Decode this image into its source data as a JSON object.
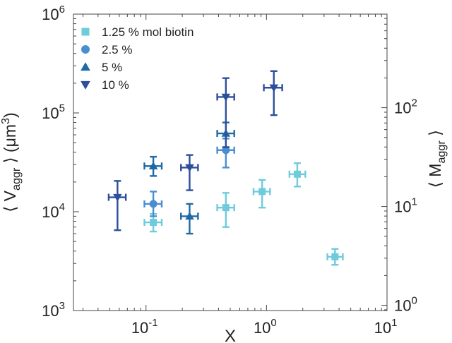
{
  "chart_data": {
    "type": "scatter",
    "xlabel": "X",
    "ylabel": {
      "prefix": "⟨ V",
      "sub": "aggr",
      "mid": " ⟩ (μm",
      "sup": "3",
      "suffix": ")"
    },
    "y2label": {
      "prefix": "⟨ M",
      "sub": "aggr",
      "suffix": " ⟩"
    },
    "x_scale": "log",
    "y_scale": "log",
    "xlim": [
      0.025,
      10
    ],
    "ylim": [
      1000,
      1000000
    ],
    "y2_scale": "log",
    "y2_ticks": [
      1,
      10,
      100
    ],
    "y2_conversion": "M = V / 1130",
    "x_ticks": [
      0.1,
      1,
      10
    ],
    "y_ticks": [
      1000,
      10000,
      100000,
      1000000
    ],
    "grid": false,
    "legend_position": "top-left",
    "series": [
      {
        "name": "1.25 % mol biotin",
        "marker": "square",
        "color": "#6dcbdc",
        "points": [
          {
            "x": 0.115,
            "y": 7800,
            "xerr": [
              0.097,
              0.135
            ],
            "yerr": [
              6300,
              9500
            ]
          },
          {
            "x": 0.46,
            "y": 11000,
            "xerr": [
              0.39,
              0.54
            ],
            "yerr": [
              7000,
              15500
            ]
          },
          {
            "x": 0.92,
            "y": 16000,
            "xerr": [
              0.78,
              1.07
            ],
            "yerr": [
              11000,
              21000
            ]
          },
          {
            "x": 1.8,
            "y": 24000,
            "xerr": [
              1.55,
              2.1
            ],
            "yerr": [
              18000,
              31000
            ]
          },
          {
            "x": 3.7,
            "y": 3500,
            "xerr": [
              3.2,
              4.3
            ],
            "yerr": [
              2900,
              4200
            ]
          }
        ]
      },
      {
        "name": "2.5 %",
        "marker": "circle",
        "color": "#4a8ed0",
        "points": [
          {
            "x": 0.115,
            "y": 12000,
            "xerr": [
              0.097,
              0.135
            ],
            "yerr": [
              9000,
              16000
            ]
          },
          {
            "x": 0.46,
            "y": 42000,
            "xerr": [
              0.39,
              0.54
            ],
            "yerr": [
              28000,
              55000
            ]
          }
        ]
      },
      {
        "name": "5 %",
        "marker": "triangle-up",
        "color": "#1f6aa5",
        "points": [
          {
            "x": 0.115,
            "y": 29000,
            "xerr": [
              0.097,
              0.135
            ],
            "yerr": [
              23000,
              36000
            ]
          },
          {
            "x": 0.23,
            "y": 9000,
            "xerr": [
              0.195,
              0.27
            ],
            "yerr": [
              6000,
              12000
            ]
          },
          {
            "x": 0.46,
            "y": 62000,
            "xerr": [
              0.39,
              0.54
            ],
            "yerr": [
              45000,
              80000
            ]
          }
        ]
      },
      {
        "name": "10 %",
        "marker": "triangle-down",
        "color": "#2c4e9c",
        "points": [
          {
            "x": 0.058,
            "y": 14000,
            "xerr": [
              0.049,
              0.068
            ],
            "yerr": [
              6500,
              20500
            ]
          },
          {
            "x": 0.23,
            "y": 28000,
            "xerr": [
              0.195,
              0.27
            ],
            "yerr": [
              16500,
              37500
            ]
          },
          {
            "x": 0.46,
            "y": 145000,
            "xerr": [
              0.39,
              0.54
            ],
            "yerr": [
              45000,
              225000
            ]
          },
          {
            "x": 1.15,
            "y": 180000,
            "xerr": [
              0.95,
              1.35
            ],
            "yerr": [
              95000,
              265000
            ]
          }
        ]
      }
    ]
  }
}
